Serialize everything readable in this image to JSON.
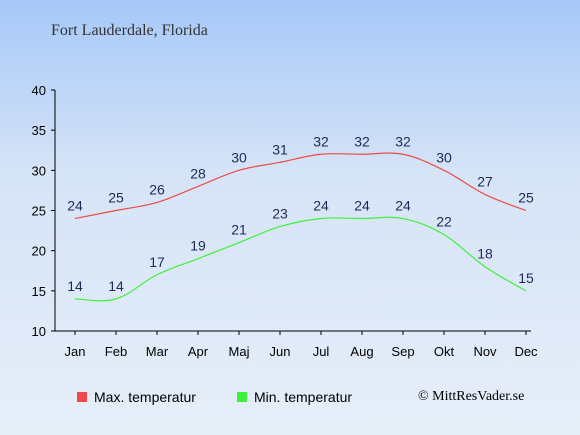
{
  "title": "Fort Lauderdale, Florida",
  "copyright": "© MittResVader.se",
  "colors": {
    "max": "#f04a4a",
    "min": "#3ef03a",
    "label": "#1e2a55"
  },
  "chart_data": {
    "type": "line",
    "categories": [
      "Jan",
      "Feb",
      "Mar",
      "Apr",
      "Maj",
      "Jun",
      "Jul",
      "Aug",
      "Sep",
      "Okt",
      "Nov",
      "Dec"
    ],
    "ylim": [
      10,
      40
    ],
    "yticks": [
      10,
      15,
      20,
      25,
      30,
      35,
      40
    ],
    "grid": false,
    "legend_position": "bottom",
    "series": [
      {
        "name": "Max. temperatur",
        "values": [
          24,
          25,
          26,
          28,
          30,
          31,
          32,
          32,
          32,
          30,
          27,
          25
        ]
      },
      {
        "name": "Min. temperatur",
        "values": [
          14,
          14,
          17,
          19,
          21,
          23,
          24,
          24,
          24,
          22,
          18,
          15
        ]
      }
    ]
  }
}
